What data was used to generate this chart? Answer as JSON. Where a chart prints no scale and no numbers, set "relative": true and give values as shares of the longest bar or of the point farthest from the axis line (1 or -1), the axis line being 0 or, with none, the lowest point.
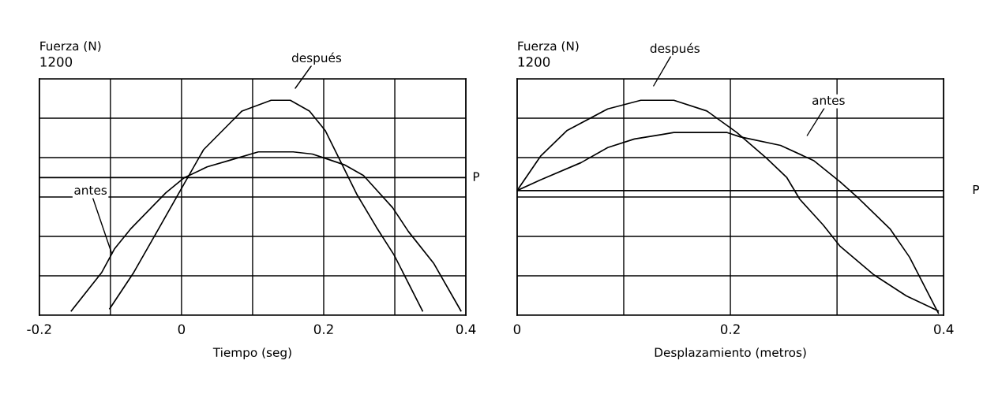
{
  "chart_data": [
    {
      "type": "line",
      "relative": true,
      "xlabel": "Tiempo (seg)",
      "ylabel": "Fuerza (N)",
      "xlim": [
        -0.2,
        0.4
      ],
      "xticks": [
        -0.2,
        {
          "value": -0.1,
          "label": null
        },
        0,
        {
          "value": 0.1,
          "label": null
        },
        0.2,
        {
          "value": 0.3,
          "label": null
        },
        0.4
      ],
      "grid": true,
      "line_style": "solid",
      "marker": "none",
      "series": [
        {
          "color": "#000000",
          "x": [
            -0.155,
            -0.112,
            -0.094,
            -0.072,
            -0.022,
            0.004,
            0.036,
            0.067,
            0.108,
            0.157,
            0.184,
            0.202,
            0.229,
            0.256,
            0.297,
            0.319,
            0.355,
            0.393
          ],
          "values": [
            0.02,
            0.2,
            0.31,
            0.4,
            0.57,
            0.64,
            0.69,
            0.72,
            0.76,
            0.76,
            0.75,
            0.73,
            0.7,
            0.65,
            0.5,
            0.39,
            0.24,
            0.02
          ]
        },
        {
          "color": "#000000",
          "x": [
            -0.101,
            -0.067,
            -0.036,
            0.0,
            0.031,
            0.067,
            0.085,
            0.126,
            0.153,
            0.18,
            0.202,
            0.22,
            0.247,
            0.274,
            0.299,
            0.339
          ],
          "values": [
            0.03,
            0.2,
            0.38,
            0.59,
            0.77,
            0.89,
            0.95,
            1,
            1,
            0.95,
            0.86,
            0.74,
            0.56,
            0.41,
            0.28,
            0.02
          ]
        }
      ],
      "ref_lines": [
        {
          "axis": "y",
          "value": 0.64,
          "label": "P",
          "color": "#000000",
          "line_style": "solid"
        }
      ],
      "annotations": [
        "después",
        "antes",
        "1200"
      ]
    },
    {
      "type": "line",
      "relative": true,
      "xlabel": "Desplazamiento (metros)",
      "ylabel": "Fuerza (N)",
      "xlim": [
        0,
        0.4
      ],
      "xticks": [
        0,
        {
          "value": 0.1,
          "label": null
        },
        0.2,
        {
          "value": 0.3,
          "label": null
        },
        0.4
      ],
      "grid": true,
      "line_style": "solid",
      "marker": "none",
      "series": [
        {
          "color": "#000000",
          "x": [
            0,
            0.022,
            0.06,
            0.085,
            0.11,
            0.135,
            0.147,
            0.197,
            0.209,
            0.247,
            0.278,
            0.303,
            0.321,
            0.35,
            0.368,
            0.395
          ],
          "values": [
            0.58,
            0.63,
            0.71,
            0.78,
            0.82,
            0.84,
            0.85,
            0.85,
            0.83,
            0.79,
            0.72,
            0.62,
            0.54,
            0.4,
            0.27,
            0.01
          ]
        },
        {
          "color": "#000000",
          "x": [
            0,
            0.022,
            0.047,
            0.085,
            0.116,
            0.147,
            0.178,
            0.206,
            0.234,
            0.253,
            0.265,
            0.287,
            0.303,
            0.334,
            0.365,
            0.395
          ],
          "values": [
            0.58,
            0.74,
            0.86,
            0.96,
            1,
            1,
            0.95,
            0.85,
            0.73,
            0.64,
            0.54,
            0.42,
            0.32,
            0.19,
            0.09,
            0.02
          ]
        }
      ],
      "ref_lines": [
        {
          "axis": "y",
          "value": 0.58,
          "label": "P",
          "color": "#000000",
          "line_style": "solid"
        }
      ],
      "annotations": [
        "después",
        "antes",
        "1200"
      ]
    }
  ]
}
